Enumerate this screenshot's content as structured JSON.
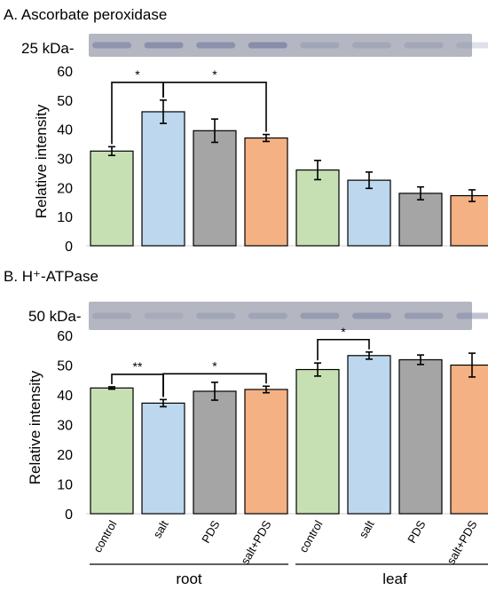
{
  "colors": {
    "control": "#c6e0b4",
    "salt": "#bdd7ee",
    "PDS": "#a5a5a5",
    "salt+PDS": "#f4b183",
    "axis": "#d9d9d9",
    "blot_bg": "#b4b7c1",
    "band": "#7f86a6"
  },
  "chart_data": [
    {
      "type": "bar",
      "title": "A. Ascorbate peroxidase",
      "blot_label": "25 kDa-",
      "ylabel": "Relative intensity",
      "ylim": [
        0,
        60
      ],
      "yticks": [
        "0",
        "10",
        "20",
        "30",
        "40",
        "50",
        "60"
      ],
      "grid": false,
      "categories": [
        "control",
        "salt",
        "PDS",
        "salt+PDS",
        "control",
        "salt",
        "PDS",
        "salt+PDS"
      ],
      "values": [
        32.5,
        46,
        39.5,
        37,
        26,
        22.5,
        18,
        17.2
      ],
      "errors": [
        1.5,
        4,
        4,
        1.2,
        3.3,
        2.8,
        2.2,
        2
      ],
      "band_darkness": [
        0.7,
        0.8,
        0.75,
        0.85,
        0.35,
        0.3,
        0.3,
        0.25
      ],
      "significance": [
        {
          "from": 0,
          "to": 1,
          "label": "*"
        },
        {
          "from": 1,
          "to": 3,
          "label": "*"
        }
      ]
    },
    {
      "type": "bar",
      "title": "B. H⁺-ATPase",
      "blot_label": "50 kDa-",
      "ylabel": "Relative intensity",
      "ylim": [
        0,
        60
      ],
      "yticks": [
        "0",
        "10",
        "20",
        "30",
        "40",
        "50",
        "60"
      ],
      "grid": false,
      "categories": [
        "control",
        "salt",
        "PDS",
        "salt+PDS",
        "control",
        "salt",
        "PDS",
        "salt+PDS"
      ],
      "values": [
        42.3,
        37.2,
        41.2,
        41.8,
        48.5,
        53.2,
        51.8,
        50
      ],
      "errors": [
        0.4,
        1.2,
        3,
        1.1,
        2.2,
        1.2,
        1.6,
        4
      ],
      "band_darkness": [
        0.3,
        0.25,
        0.35,
        0.4,
        0.55,
        0.6,
        0.55,
        0.5
      ],
      "significance": [
        {
          "from": 0,
          "to": 1,
          "label": "**"
        },
        {
          "from": 1,
          "to": 3,
          "label": "*"
        },
        {
          "from": 4,
          "to": 5,
          "label": "*"
        }
      ],
      "groups": [
        {
          "label": "root",
          "from": 0,
          "to": 3
        },
        {
          "label": "leaf",
          "from": 4,
          "to": 7
        }
      ]
    }
  ]
}
